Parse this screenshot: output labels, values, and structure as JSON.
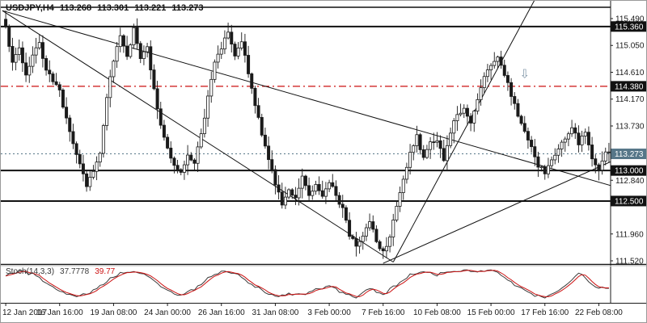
{
  "window": {
    "bg": "#ffffff",
    "border_color": "#9a9a9a"
  },
  "header": {
    "symbol_timeframe": "USDJPY,H4",
    "open": "113.268",
    "high": "113.301",
    "low": "113.221",
    "close": "113.273"
  },
  "price_axis": {
    "ticks": [
      {
        "label": "115.490",
        "price": 115.49
      },
      {
        "label": "115.050",
        "price": 115.05
      },
      {
        "label": "114.610",
        "price": 114.61
      },
      {
        "label": "114.170",
        "price": 114.17
      },
      {
        "label": "113.730",
        "price": 113.73
      },
      {
        "label": "112.840",
        "price": 112.84
      },
      {
        "label": "111.960",
        "price": 111.96
      },
      {
        "label": "111.520",
        "price": 111.52
      }
    ],
    "badges": [
      {
        "label": "115.360",
        "price": 115.36,
        "bg": "#111111",
        "fg": "#ffffff",
        "role": "resistance-level"
      },
      {
        "label": "114.380",
        "price": 114.38,
        "bg": "#111111",
        "fg": "#ffffff",
        "role": "level"
      },
      {
        "label": "113.273",
        "price": 113.273,
        "bg": "#567688",
        "fg": "#ffffff",
        "role": "current-price"
      },
      {
        "label": "113.000",
        "price": 113.0,
        "bg": "#111111",
        "fg": "#ffffff",
        "role": "support-level"
      },
      {
        "label": "112.500",
        "price": 112.5,
        "bg": "#111111",
        "fg": "#ffffff",
        "role": "support-level"
      }
    ]
  },
  "chart_data": {
    "type": "candlestick",
    "symbol": "USDJPY",
    "timeframe": "H4",
    "n_candles": 180,
    "ohlc_current": {
      "open": 113.268,
      "high": 113.301,
      "low": 113.221,
      "close": 113.273
    },
    "y_scale": {
      "price_top": 115.49,
      "price_bottom": 111.52
    },
    "x_labels": [
      {
        "i": 0,
        "label": "12 Jan 2017"
      },
      {
        "i": 16,
        "label": "16 Jan 16:00"
      },
      {
        "i": 32,
        "label": "19 Jan 08:00"
      },
      {
        "i": 48,
        "label": "24 Jan 00:00"
      },
      {
        "i": 64,
        "label": "26 Jan 16:00"
      },
      {
        "i": 80,
        "label": "31 Jan 08:00"
      },
      {
        "i": 96,
        "label": "3 Feb 00:00"
      },
      {
        "i": 112,
        "label": "7 Feb 16:00"
      },
      {
        "i": 128,
        "label": "10 Feb 08:00"
      },
      {
        "i": 144,
        "label": "15 Feb 00:00"
      },
      {
        "i": 160,
        "label": "17 Feb 16:00"
      },
      {
        "i": 176,
        "label": "22 Feb 08:00"
      }
    ],
    "close_waypoints": [
      [
        0,
        115.35
      ],
      [
        2,
        114.75
      ],
      [
        4,
        115.05
      ],
      [
        6,
        114.55
      ],
      [
        8,
        114.9
      ],
      [
        10,
        115.1
      ],
      [
        12,
        114.6
      ],
      [
        14,
        114.5
      ],
      [
        16,
        114.3
      ],
      [
        20,
        113.4
      ],
      [
        24,
        112.75
      ],
      [
        26,
        112.95
      ],
      [
        28,
        113.3
      ],
      [
        30,
        114.2
      ],
      [
        32,
        114.8
      ],
      [
        34,
        115.2
      ],
      [
        36,
        114.9
      ],
      [
        38,
        115.3
      ],
      [
        40,
        114.85
      ],
      [
        42,
        115.05
      ],
      [
        44,
        114.3
      ],
      [
        46,
        113.7
      ],
      [
        48,
        113.4
      ],
      [
        50,
        113.05
      ],
      [
        52,
        112.95
      ],
      [
        54,
        113.25
      ],
      [
        56,
        113.1
      ],
      [
        58,
        113.6
      ],
      [
        60,
        114.2
      ],
      [
        62,
        114.75
      ],
      [
        64,
        115.0
      ],
      [
        66,
        115.3
      ],
      [
        68,
        114.9
      ],
      [
        70,
        115.15
      ],
      [
        72,
        114.6
      ],
      [
        74,
        114.1
      ],
      [
        76,
        113.6
      ],
      [
        78,
        113.15
      ],
      [
        80,
        112.8
      ],
      [
        82,
        112.45
      ],
      [
        84,
        112.7
      ],
      [
        86,
        112.55
      ],
      [
        88,
        112.9
      ],
      [
        90,
        112.6
      ],
      [
        92,
        112.75
      ],
      [
        94,
        112.55
      ],
      [
        96,
        112.8
      ],
      [
        98,
        112.6
      ],
      [
        100,
        112.35
      ],
      [
        102,
        111.95
      ],
      [
        104,
        111.75
      ],
      [
        106,
        111.9
      ],
      [
        108,
        112.2
      ],
      [
        110,
        111.85
      ],
      [
        112,
        111.65
      ],
      [
        114,
        111.9
      ],
      [
        116,
        112.4
      ],
      [
        118,
        112.85
      ],
      [
        120,
        113.3
      ],
      [
        122,
        113.55
      ],
      [
        124,
        113.2
      ],
      [
        126,
        113.45
      ],
      [
        128,
        113.5
      ],
      [
        130,
        113.2
      ],
      [
        132,
        113.65
      ],
      [
        134,
        113.9
      ],
      [
        136,
        114.05
      ],
      [
        138,
        113.75
      ],
      [
        140,
        114.2
      ],
      [
        142,
        114.5
      ],
      [
        144,
        114.75
      ],
      [
        146,
        114.9
      ],
      [
        148,
        114.55
      ],
      [
        150,
        114.25
      ],
      [
        152,
        113.9
      ],
      [
        154,
        113.6
      ],
      [
        156,
        113.35
      ],
      [
        158,
        113.1
      ],
      [
        160,
        112.95
      ],
      [
        162,
        113.15
      ],
      [
        164,
        113.35
      ],
      [
        166,
        113.55
      ],
      [
        168,
        113.7
      ],
      [
        170,
        113.45
      ],
      [
        172,
        113.6
      ],
      [
        174,
        113.15
      ],
      [
        176,
        113.05
      ],
      [
        178,
        113.3
      ],
      [
        179,
        113.27
      ]
    ],
    "horizontal_lines": [
      {
        "price": 115.675,
        "color": "#111111",
        "style": "solid",
        "width": 1.5
      },
      {
        "price": 115.36,
        "color": "#111111",
        "style": "solid",
        "width": 2
      },
      {
        "price": 114.38,
        "color": "#cc1111",
        "style": "dashdot",
        "width": 1.2
      },
      {
        "price": 113.0,
        "color": "#111111",
        "style": "solid",
        "width": 2
      },
      {
        "price": 112.5,
        "color": "#111111",
        "style": "solid",
        "width": 2
      }
    ],
    "current_price_line": {
      "price": 113.273,
      "color": "#567688",
      "style": "dotted"
    },
    "trendlines": [
      {
        "i1": -1,
        "p1": 115.62,
        "i2": 181,
        "p2": 112.73,
        "color": "#111111"
      },
      {
        "i1": -1,
        "p1": 115.62,
        "i2": 115,
        "p2": 111.5,
        "color": "#111111"
      },
      {
        "i1": 115,
        "p1": 111.5,
        "i2": 157,
        "p2": 115.8,
        "color": "#111111"
      },
      {
        "i1": 112,
        "p1": 111.48,
        "i2": 181,
        "p2": 113.18,
        "color": "#111111"
      }
    ],
    "annotations": [
      {
        "glyph": "⇩",
        "i": 154,
        "price": 114.52,
        "color": "#8096a8",
        "size": 15
      }
    ],
    "stochastic": {
      "label": "Stoch(14,3,3)",
      "k_value": "37.7778",
      "d_value": "39.77",
      "k_color": "#3a3a3a",
      "d_color": "#cc1111",
      "range": [
        0,
        100
      ],
      "k_waypoints": [
        [
          0,
          78
        ],
        [
          4,
          88
        ],
        [
          8,
          82
        ],
        [
          12,
          55
        ],
        [
          16,
          30
        ],
        [
          20,
          12
        ],
        [
          24,
          18
        ],
        [
          28,
          45
        ],
        [
          32,
          75
        ],
        [
          36,
          90
        ],
        [
          40,
          85
        ],
        [
          44,
          60
        ],
        [
          48,
          30
        ],
        [
          52,
          15
        ],
        [
          56,
          35
        ],
        [
          60,
          68
        ],
        [
          64,
          88
        ],
        [
          68,
          86
        ],
        [
          72,
          58
        ],
        [
          76,
          30
        ],
        [
          80,
          12
        ],
        [
          84,
          22
        ],
        [
          88,
          15
        ],
        [
          92,
          32
        ],
        [
          96,
          45
        ],
        [
          100,
          22
        ],
        [
          104,
          10
        ],
        [
          108,
          38
        ],
        [
          112,
          18
        ],
        [
          116,
          48
        ],
        [
          120,
          78
        ],
        [
          124,
          88
        ],
        [
          128,
          80
        ],
        [
          132,
          90
        ],
        [
          136,
          94
        ],
        [
          140,
          88
        ],
        [
          144,
          94
        ],
        [
          148,
          72
        ],
        [
          152,
          42
        ],
        [
          156,
          18
        ],
        [
          160,
          10
        ],
        [
          164,
          28
        ],
        [
          168,
          62
        ],
        [
          170,
          82
        ],
        [
          172,
          72
        ],
        [
          174,
          48
        ],
        [
          176,
          34
        ],
        [
          178,
          40
        ],
        [
          179,
          37.8
        ]
      ]
    }
  }
}
